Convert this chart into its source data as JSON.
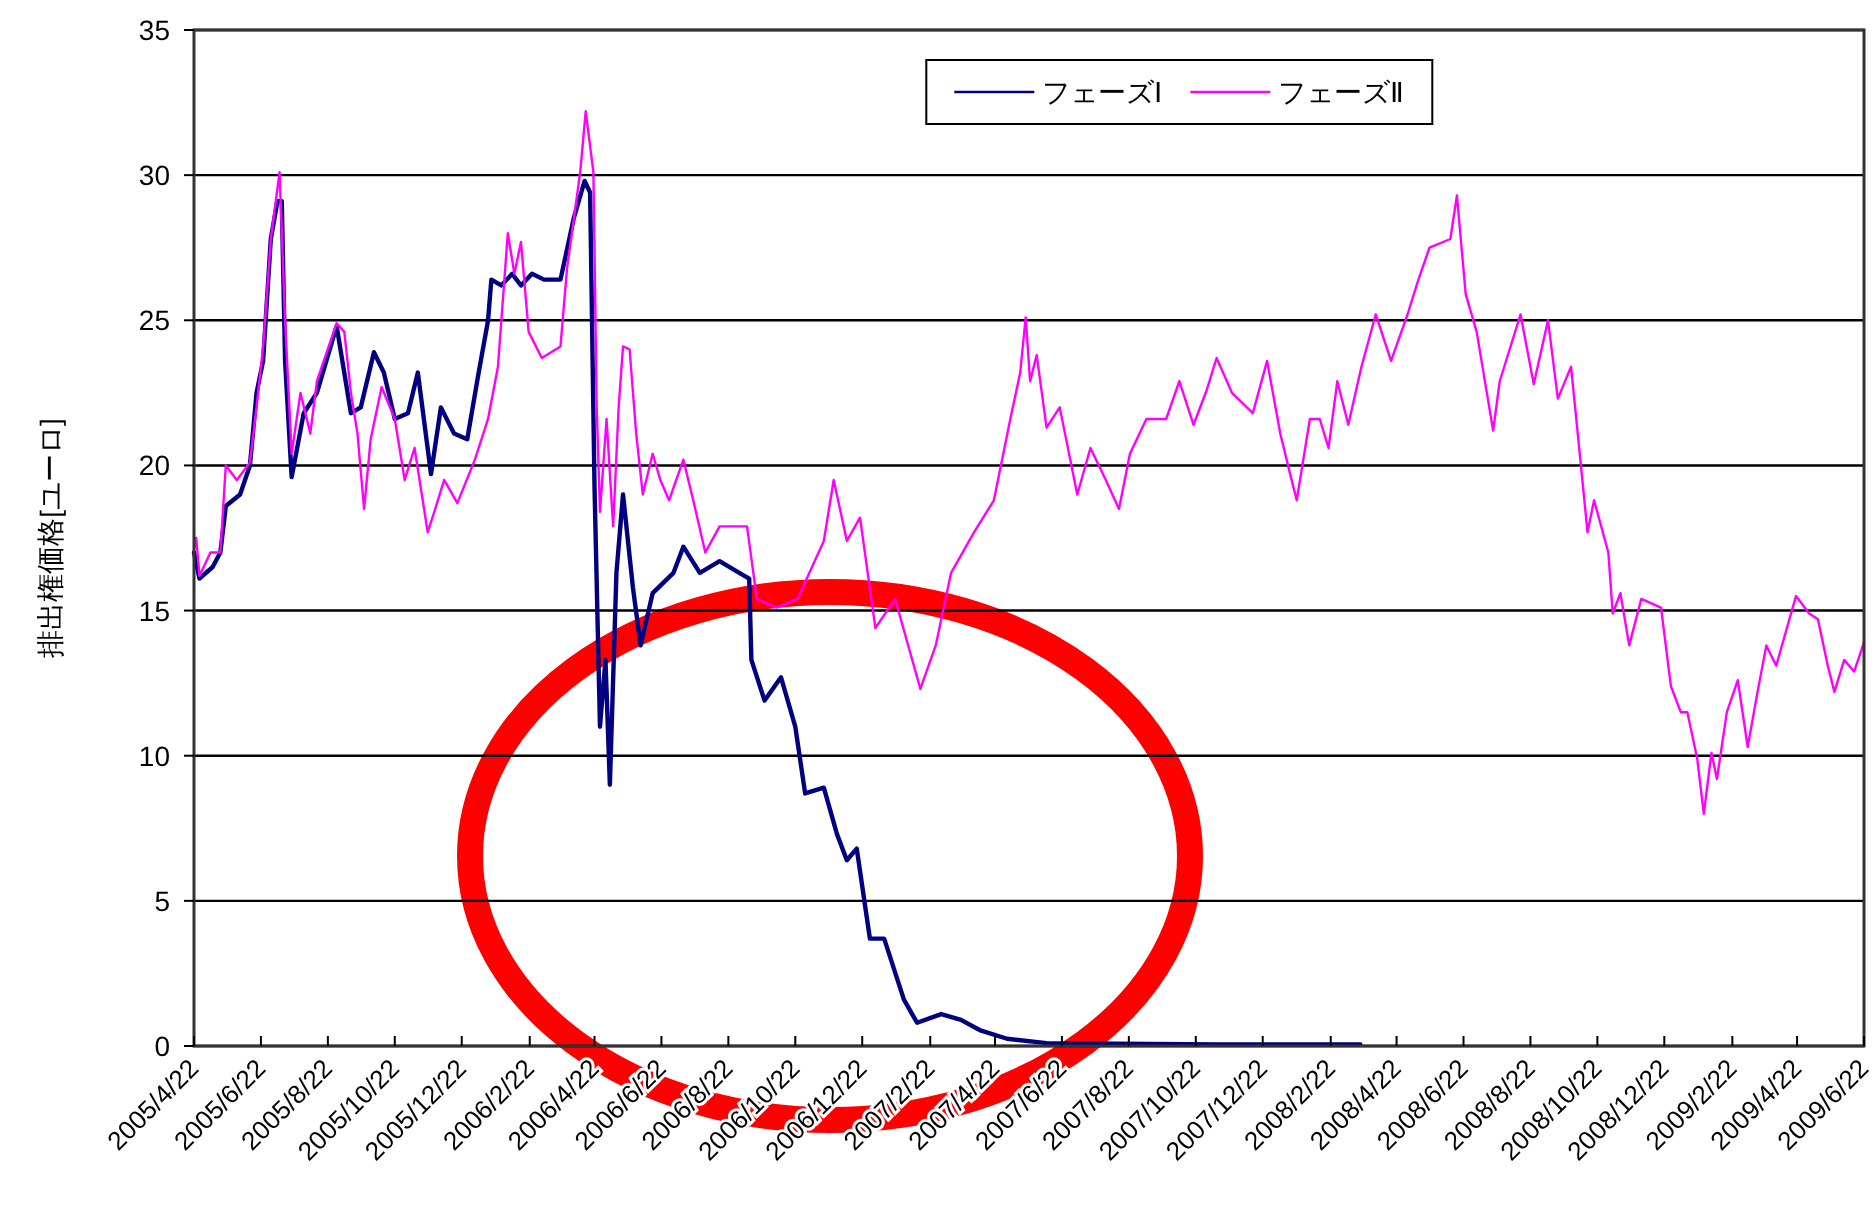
{
  "chart_data": {
    "type": "line",
    "ylabel": "排出権価格[ユーロ]",
    "xlim": [
      "2005-04-22",
      "2009-06-22"
    ],
    "ylim": [
      0,
      35
    ],
    "yticks": [
      0,
      5,
      10,
      15,
      20,
      25,
      30,
      35
    ],
    "xticks": [
      {
        "value": "2005-04-22",
        "label": "2005/4/22"
      },
      {
        "value": "2005-06-22",
        "label": "2005/6/22"
      },
      {
        "value": "2005-08-22",
        "label": "2005/8/22"
      },
      {
        "value": "2005-10-22",
        "label": "2005/10/22"
      },
      {
        "value": "2005-12-22",
        "label": "2005/12/22"
      },
      {
        "value": "2006-02-22",
        "label": "2006/2/22"
      },
      {
        "value": "2006-04-22",
        "label": "2006/4/22"
      },
      {
        "value": "2006-06-22",
        "label": "2006/6/22"
      },
      {
        "value": "2006-08-22",
        "label": "2006/8/22"
      },
      {
        "value": "2006-10-22",
        "label": "2006/10/22"
      },
      {
        "value": "2006-12-22",
        "label": "2006/12/22"
      },
      {
        "value": "2007-02-22",
        "label": "2007/2/22"
      },
      {
        "value": "2007-04-22",
        "label": "2007/4/22"
      },
      {
        "value": "2007-06-22",
        "label": "2007/6/22"
      },
      {
        "value": "2007-08-22",
        "label": "2007/8/22"
      },
      {
        "value": "2007-10-22",
        "label": "2007/10/22"
      },
      {
        "value": "2007-12-22",
        "label": "2007/12/22"
      },
      {
        "value": "2008-02-22",
        "label": "2008/2/22"
      },
      {
        "value": "2008-04-22",
        "label": "2008/4/22"
      },
      {
        "value": "2008-06-22",
        "label": "2008/6/22"
      },
      {
        "value": "2008-08-22",
        "label": "2008/8/22"
      },
      {
        "value": "2008-10-22",
        "label": "2008/10/22"
      },
      {
        "value": "2008-12-22",
        "label": "2008/12/22"
      },
      {
        "value": "2009-02-22",
        "label": "2009/2/22"
      },
      {
        "value": "2009-04-22",
        "label": "2009/4/22"
      },
      {
        "value": "2009-06-22",
        "label": "2009/6/22"
      }
    ],
    "grid": "y",
    "legend": "top",
    "series": [
      {
        "name": "フェーズⅠ",
        "color": "#000080",
        "x": [
          "2005-04-22",
          "2005-04-27",
          "2005-05-09",
          "2005-05-16",
          "2005-05-21",
          "2005-06-03",
          "2005-06-12",
          "2005-06-18",
          "2005-06-24",
          "2005-07-01",
          "2005-07-07",
          "2005-07-11",
          "2005-07-14",
          "2005-07-20",
          "2005-07-31",
          "2005-08-12",
          "2005-08-30",
          "2005-09-12",
          "2005-09-21",
          "2005-10-03",
          "2005-10-12",
          "2005-10-22",
          "2005-11-03",
          "2005-11-12",
          "2005-11-24",
          "2005-12-03",
          "2005-12-15",
          "2005-12-27",
          "2006-01-06",
          "2006-01-15",
          "2006-01-18",
          "2006-01-27",
          "2006-02-06",
          "2006-02-14",
          "2006-02-24",
          "2006-03-07",
          "2006-03-22",
          "2006-04-03",
          "2006-04-13",
          "2006-04-18",
          "2006-04-22",
          "2006-04-27",
          "2006-05-02",
          "2006-05-06",
          "2006-05-12",
          "2006-05-18",
          "2006-05-27",
          "2006-06-03",
          "2006-06-14",
          "2006-07-03",
          "2006-07-12",
          "2006-07-27",
          "2006-08-14",
          "2006-09-01",
          "2006-09-10",
          "2006-09-12",
          "2006-09-24",
          "2006-10-09",
          "2006-10-22",
          "2006-10-31",
          "2006-11-17",
          "2006-11-29",
          "2006-12-08",
          "2006-12-17",
          "2006-12-29",
          "2007-01-11",
          "2007-01-29",
          "2007-02-10",
          "2007-03-04",
          "2007-03-22",
          "2007-04-08",
          "2007-05-03",
          "2007-06-08",
          "2007-11-12",
          "2008-03-20"
        ],
        "values": [
          17.0,
          16.1,
          16.5,
          17.0,
          18.6,
          19.0,
          20.0,
          22.5,
          23.6,
          27.8,
          29.1,
          29.1,
          23.6,
          19.6,
          21.8,
          22.5,
          24.8,
          21.8,
          22.0,
          23.9,
          23.2,
          21.6,
          21.8,
          23.2,
          19.7,
          22.0,
          21.1,
          20.9,
          23.1,
          25.0,
          26.4,
          26.2,
          26.6,
          26.2,
          26.6,
          26.4,
          26.4,
          28.5,
          29.8,
          29.4,
          19.3,
          11.0,
          13.3,
          9.0,
          16.3,
          19.0,
          15.8,
          13.8,
          15.6,
          16.3,
          17.2,
          16.3,
          16.7,
          16.3,
          16.1,
          13.3,
          11.9,
          12.7,
          11.0,
          8.7,
          8.9,
          7.3,
          6.4,
          6.8,
          3.7,
          3.7,
          1.6,
          0.8,
          1.1,
          0.9,
          0.55,
          0.25,
          0.1,
          0.05,
          0.05
        ]
      },
      {
        "name": "フェーズⅡ",
        "color": "#ff00ff",
        "x": [
          "2005-04-22",
          "2005-04-24",
          "2005-04-27",
          "2005-05-07",
          "2005-05-16",
          "2005-05-21",
          "2005-05-31",
          "2005-06-12",
          "2005-06-18",
          "2005-06-24",
          "2005-07-01",
          "2005-07-09",
          "2005-07-14",
          "2005-07-20",
          "2005-07-28",
          "2005-08-06",
          "2005-08-12",
          "2005-08-30",
          "2005-09-06",
          "2005-09-12",
          "2005-09-18",
          "2005-09-24",
          "2005-09-30",
          "2005-10-10",
          "2005-10-22",
          "2005-10-31",
          "2005-11-09",
          "2005-11-21",
          "2005-11-27",
          "2005-12-06",
          "2005-12-18",
          "2006-01-03",
          "2006-01-15",
          "2006-01-24",
          "2006-02-02",
          "2006-02-08",
          "2006-02-14",
          "2006-02-21",
          "2006-03-05",
          "2006-03-22",
          "2006-03-28",
          "2006-04-09",
          "2006-04-14",
          "2006-04-18",
          "2006-04-21",
          "2006-04-24",
          "2006-04-27",
          "2006-05-03",
          "2006-05-09",
          "2006-05-14",
          "2006-05-18",
          "2006-05-24",
          "2006-05-30",
          "2006-06-05",
          "2006-06-14",
          "2006-06-21",
          "2006-06-29",
          "2006-07-12",
          "2006-07-21",
          "2006-08-01",
          "2006-08-14",
          "2006-09-08",
          "2006-09-17",
          "2006-10-05",
          "2006-10-24",
          "2006-11-17",
          "2006-11-26",
          "2006-12-08",
          "2006-12-20",
          "2007-01-03",
          "2007-01-21",
          "2007-02-13",
          "2007-02-27",
          "2007-03-13",
          "2007-04-03",
          "2007-04-21",
          "2007-05-06",
          "2007-05-15",
          "2007-05-20",
          "2007-05-24",
          "2007-05-30",
          "2007-06-08",
          "2007-06-20",
          "2007-07-06",
          "2007-07-18",
          "2007-08-01",
          "2007-08-13",
          "2007-08-23",
          "2007-09-07",
          "2007-09-25",
          "2007-10-07",
          "2007-10-20",
          "2007-11-01",
          "2007-11-10",
          "2007-11-24",
          "2007-12-13",
          "2007-12-26",
          "2008-01-07",
          "2008-01-16",
          "2008-01-22",
          "2008-02-03",
          "2008-02-12",
          "2008-02-20",
          "2008-02-28",
          "2008-03-09",
          "2008-03-21",
          "2008-04-03",
          "2008-04-17",
          "2008-05-02",
          "2008-05-11",
          "2008-05-22",
          "2008-06-10",
          "2008-06-16",
          "2008-06-24",
          "2008-07-04",
          "2008-07-19",
          "2008-07-25",
          "2008-08-13",
          "2008-08-25",
          "2008-09-07",
          "2008-09-16",
          "2008-09-28",
          "2008-10-07",
          "2008-10-13",
          "2008-10-19",
          "2008-11-01",
          "2008-11-05",
          "2008-11-12",
          "2008-11-20",
          "2008-12-01",
          "2008-12-19",
          "2008-12-28",
          "2009-01-06",
          "2009-01-12",
          "2009-01-21",
          "2009-01-27",
          "2009-02-03",
          "2009-02-08",
          "2009-02-17",
          "2009-02-27",
          "2009-03-08",
          "2009-03-17",
          "2009-03-25",
          "2009-04-03",
          "2009-04-21",
          "2009-05-03",
          "2009-05-11",
          "2009-05-20",
          "2009-05-26",
          "2009-06-04",
          "2009-06-13",
          "2009-06-22"
        ],
        "values": [
          17.1,
          17.5,
          16.2,
          17.0,
          17.0,
          20.0,
          19.5,
          20.1,
          22.0,
          24.1,
          27.8,
          30.1,
          25.0,
          20.4,
          22.5,
          21.1,
          22.9,
          24.9,
          24.6,
          22.5,
          21.1,
          18.5,
          20.9,
          22.7,
          21.6,
          19.5,
          20.6,
          17.7,
          18.4,
          19.5,
          18.7,
          20.2,
          21.6,
          23.4,
          28.0,
          26.6,
          27.7,
          24.6,
          23.7,
          24.1,
          26.8,
          30.1,
          32.2,
          31.0,
          30.1,
          22.0,
          18.4,
          21.6,
          17.9,
          22.0,
          24.1,
          24.0,
          21.1,
          19.0,
          20.4,
          19.5,
          18.8,
          20.2,
          18.8,
          17.0,
          17.9,
          17.9,
          15.4,
          15.1,
          15.4,
          17.4,
          19.5,
          17.4,
          18.2,
          14.4,
          15.4,
          12.3,
          13.8,
          16.3,
          17.7,
          18.8,
          21.6,
          23.2,
          25.1,
          22.9,
          23.8,
          21.3,
          22.0,
          19.0,
          20.6,
          19.5,
          18.5,
          20.4,
          21.6,
          21.6,
          22.9,
          21.4,
          22.6,
          23.7,
          22.5,
          21.8,
          23.6,
          21.1,
          19.7,
          18.8,
          21.6,
          21.6,
          20.6,
          22.9,
          21.4,
          23.4,
          25.2,
          23.6,
          25.2,
          26.3,
          27.5,
          27.8,
          29.3,
          25.9,
          24.6,
          21.2,
          22.9,
          25.2,
          22.8,
          25.0,
          22.3,
          23.4,
          20.0,
          17.7,
          18.8,
          17.0,
          14.9,
          15.6,
          13.8,
          15.4,
          15.1,
          12.4,
          11.5,
          11.5,
          9.9,
          8.0,
          10.1,
          9.2,
          11.5,
          12.6,
          10.3,
          12.2,
          13.8,
          13.1,
          15.5,
          14.9,
          14.7,
          13.1,
          12.2,
          13.3,
          12.9,
          13.9
        ]
      }
    ]
  }
}
